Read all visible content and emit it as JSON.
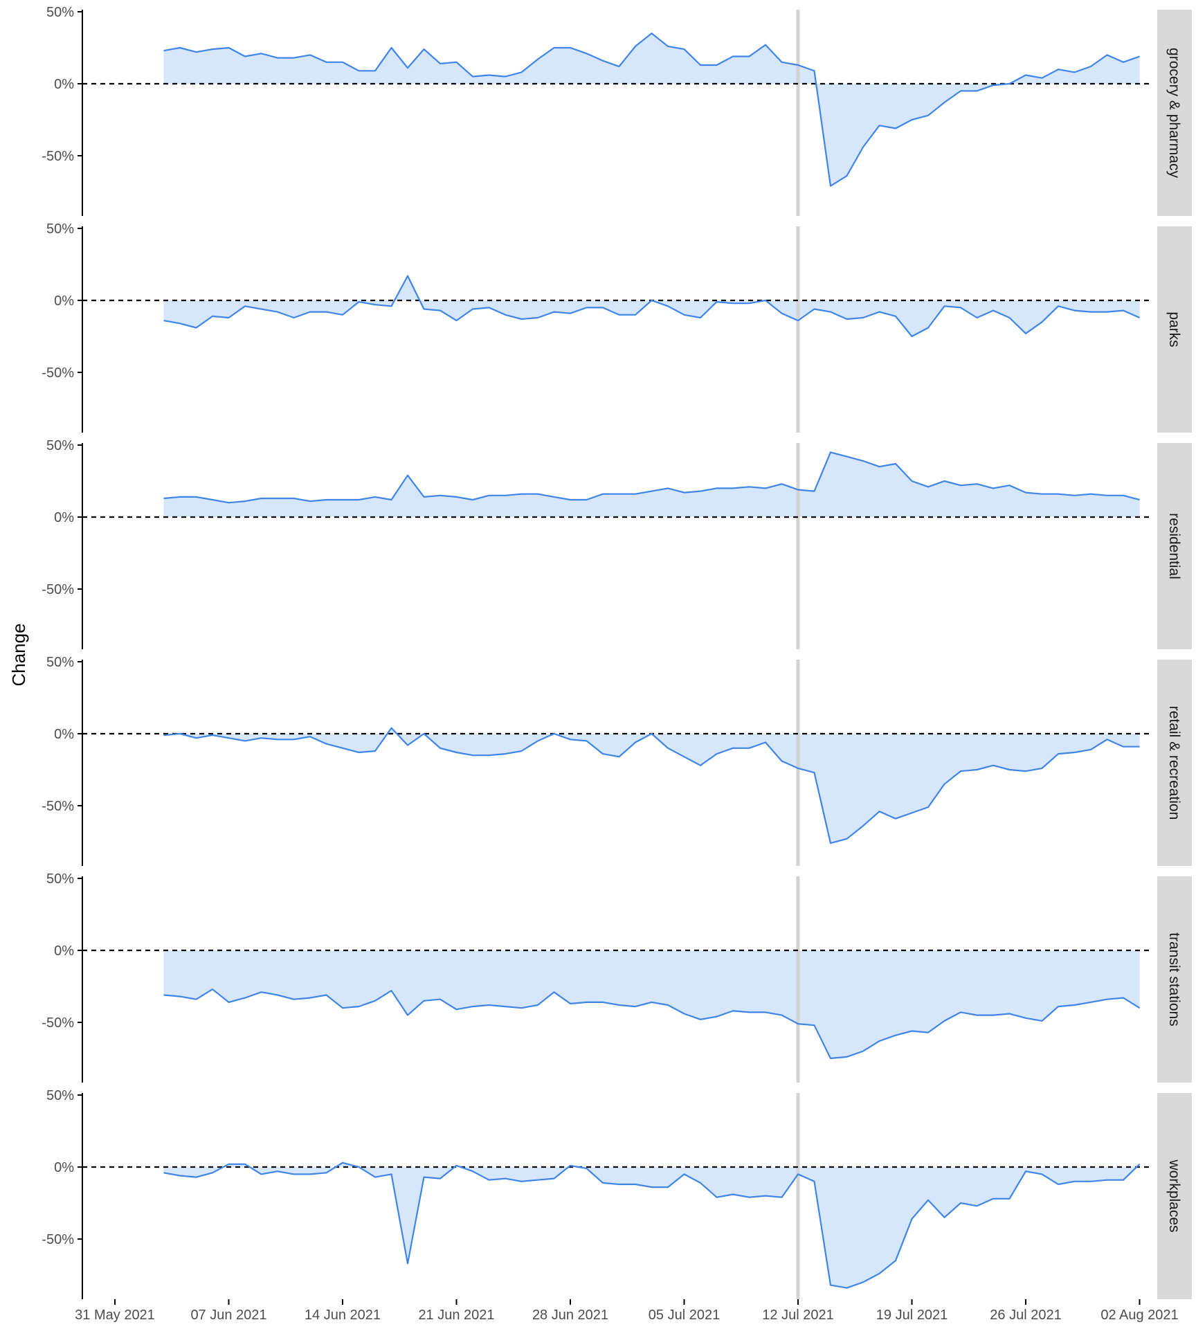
{
  "chart_data": {
    "type": "area",
    "ylabel": "Change",
    "y_ticks": [
      "50%",
      "0%",
      "-50%"
    ],
    "y_tick_values": [
      50,
      0,
      -50
    ],
    "ylim": [
      -80,
      50
    ],
    "x_ticks": [
      "31 May 2021",
      "07 Jun 2021",
      "14 Jun 2021",
      "21 Jun 2021",
      "28 Jun 2021",
      "05 Jul 2021",
      "12 Jul 2021",
      "19 Jul 2021",
      "26 Jul 2021",
      "02 Aug 2021"
    ],
    "x_start_date": "2021-06-03",
    "x_end_date": "2021-07-31",
    "reference_date": "2021-07-12",
    "baseline": 0,
    "colors": {
      "line": "#3f85e8",
      "fill": "#d6e6fb",
      "refline": "#d3d3d3",
      "strip": "#d9d9d9",
      "zero": "#000000"
    },
    "series": [
      {
        "name": "grocery & pharmacy",
        "values": [
          23,
          25,
          22,
          24,
          25,
          19,
          21,
          18,
          18,
          20,
          15,
          15,
          9,
          9,
          25,
          11,
          24,
          14,
          15,
          5,
          6,
          5,
          8,
          17,
          25,
          25,
          21,
          16,
          12,
          26,
          35,
          26,
          24,
          13,
          13,
          19,
          19,
          27,
          15,
          13,
          9,
          -71,
          -64,
          -44,
          -29,
          -31,
          -25,
          -22,
          -13,
          -5,
          -5,
          -1,
          0,
          6,
          4,
          10,
          8,
          12,
          20,
          15,
          19
        ]
      },
      {
        "name": "parks",
        "values": [
          -14,
          -16,
          -19,
          -11,
          -12,
          -4,
          -6,
          -8,
          -12,
          -8,
          -8,
          -10,
          -1,
          -3,
          -4,
          17,
          -6,
          -7,
          -14,
          -6,
          -5,
          -10,
          -13,
          -12,
          -8,
          -9,
          -5,
          -5,
          -10,
          -10,
          0,
          -4,
          -10,
          -12,
          -1,
          -2,
          -2,
          0,
          -9,
          -14,
          -6,
          -8,
          -13,
          -12,
          -8,
          -11,
          -25,
          -19,
          -4,
          -5,
          -12,
          -7,
          -12,
          -23,
          -15,
          -4,
          -7,
          -8,
          -8,
          -7,
          -12
        ]
      },
      {
        "name": "residential",
        "values": [
          13,
          14,
          14,
          12,
          10,
          11,
          13,
          13,
          13,
          11,
          12,
          12,
          12,
          14,
          12,
          29,
          14,
          15,
          14,
          12,
          15,
          15,
          16,
          16,
          14,
          12,
          12,
          16,
          16,
          16,
          18,
          20,
          17,
          18,
          20,
          20,
          21,
          20,
          23,
          19,
          18,
          45,
          42,
          39,
          35,
          37,
          25,
          21,
          25,
          22,
          23,
          20,
          22,
          17,
          16,
          16,
          15,
          16,
          15,
          15,
          12
        ]
      },
      {
        "name": "retail & recreation",
        "values": [
          -1,
          0,
          -3,
          -1,
          -3,
          -5,
          -3,
          -4,
          -4,
          -2,
          -7,
          -10,
          -13,
          -12,
          4,
          -8,
          0,
          -10,
          -13,
          -15,
          -15,
          -14,
          -12,
          -5,
          0,
          -4,
          -5,
          -14,
          -16,
          -6,
          0,
          -10,
          -16,
          -22,
          -14,
          -10,
          -10,
          -6,
          -19,
          -24,
          -27,
          -76,
          -73,
          -64,
          -54,
          -59,
          -55,
          -51,
          -35,
          -26,
          -25,
          -22,
          -25,
          -26,
          -24,
          -14,
          -13,
          -11,
          -4,
          -9,
          -9
        ]
      },
      {
        "name": "transit stations",
        "values": [
          -31,
          -32,
          -34,
          -27,
          -36,
          -33,
          -29,
          -31,
          -34,
          -33,
          -31,
          -40,
          -39,
          -35,
          -28,
          -45,
          -35,
          -34,
          -41,
          -39,
          -38,
          -39,
          -40,
          -38,
          -29,
          -37,
          -36,
          -36,
          -38,
          -39,
          -36,
          -38,
          -44,
          -48,
          -46,
          -42,
          -43,
          -43,
          -45,
          -51,
          -52,
          -75,
          -74,
          -70,
          -63,
          -59,
          -56,
          -57,
          -49,
          -43,
          -45,
          -45,
          -44,
          -47,
          -49,
          -39,
          -38,
          -36,
          -34,
          -33,
          -40
        ]
      },
      {
        "name": "workplaces",
        "values": [
          -4,
          -6,
          -7,
          -4,
          2,
          2,
          -5,
          -3,
          -5,
          -5,
          -4,
          3,
          0,
          -7,
          -5,
          -67,
          -7,
          -8,
          1,
          -3,
          -9,
          -8,
          -10,
          -9,
          -8,
          1,
          -1,
          -11,
          -12,
          -12,
          -14,
          -14,
          -5,
          -11,
          -21,
          -19,
          -21,
          -20,
          -21,
          -5,
          -10,
          -82,
          -84,
          -80,
          -74,
          -65,
          -36,
          -23,
          -35,
          -25,
          -27,
          -22,
          -22,
          -3,
          -5,
          -12,
          -10,
          -10,
          -9,
          -9,
          2
        ]
      }
    ]
  }
}
